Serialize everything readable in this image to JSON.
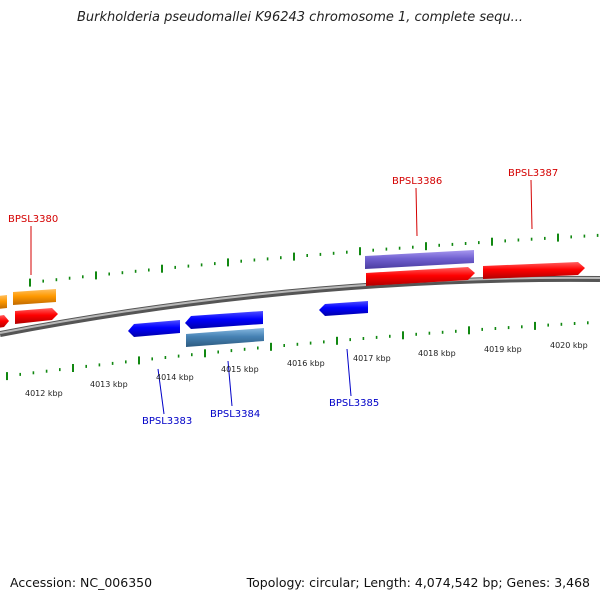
{
  "title": "Burkholderia pseudomallei K96243 chromosome 1, complete sequ...",
  "footer": {
    "accession": "Accession: NC_006350",
    "meta": "Topology: circular; Length: 4,074,542 bp; Genes: 3,468"
  },
  "colors": {
    "top_strand_gene": "#ff0000",
    "top_strand_gene_alt": "#7060d0",
    "orange_gene": "#ff9900",
    "bottom_strand_gene": "#0000ff",
    "bottom_strand_gene_alt": "#4682b4",
    "backbone": "#888888",
    "tick": "#118811",
    "top_label": "#d40000",
    "bottom_label": "#0000c8"
  },
  "kbp_labels": [
    "4012 kbp",
    "4013 kbp",
    "4014 kbp",
    "4015 kbp",
    "4016 kbp",
    "4017 kbp",
    "4018 kbp",
    "4019 kbp",
    "4020 kbp"
  ],
  "top_labels": [
    "BPSL3380",
    "BPSL3386",
    "BPSL3387"
  ],
  "bottom_labels": [
    "BPSL3383",
    "BPSL3384",
    "BPSL3385"
  ]
}
